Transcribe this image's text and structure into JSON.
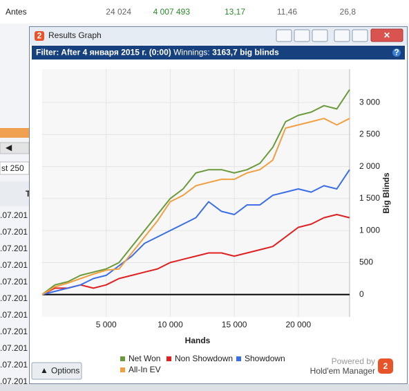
{
  "background": {
    "top_row": [
      "Antes",
      "24 024",
      "4 007 493",
      "13,17",
      "11,46",
      "26,8"
    ],
    "filter_box": "st 250",
    "column_head": "T",
    "dates": [
      ".07.201",
      ".07.201",
      ".07.201",
      ".07.201",
      ".07.201",
      ".07.201",
      ".07.201",
      ".07.201",
      ".07.201",
      ".07.201",
      ".07.201"
    ]
  },
  "window": {
    "title": "Results Graph",
    "filter_label": "Filter:",
    "filter_value": "After 4 января 2015 г. (0:00)",
    "winnings_label": "Winnings:",
    "winnings_value": "3163,7 big blinds",
    "options_button": "Options",
    "powered_by": "Powered by",
    "brand": "Hold'em Manager"
  },
  "chart_data": {
    "type": "line",
    "x_label": "Hands",
    "y_label": "Big Blinds",
    "x": [
      0,
      1000,
      2000,
      3000,
      4000,
      5000,
      6000,
      7000,
      8000,
      9000,
      10000,
      11000,
      12000,
      13000,
      14000,
      15000,
      16000,
      17000,
      18000,
      19000,
      20000,
      21000,
      22000,
      23000,
      24000
    ],
    "series": [
      {
        "name": "Net Won",
        "color": "#6a9a3a",
        "values": [
          0,
          150,
          200,
          300,
          350,
          400,
          500,
          750,
          1000,
          1250,
          1500,
          1650,
          1900,
          1950,
          1950,
          1900,
          1950,
          2050,
          2300,
          2700,
          2800,
          2850,
          2950,
          2900,
          3200
        ]
      },
      {
        "name": "Non Showdown",
        "color": "#e02020",
        "values": [
          0,
          100,
          100,
          150,
          100,
          150,
          250,
          300,
          350,
          400,
          500,
          550,
          600,
          650,
          650,
          600,
          650,
          700,
          750,
          900,
          1050,
          1100,
          1200,
          1250,
          1200
        ]
      },
      {
        "name": "Showdown",
        "color": "#3a6ee8",
        "values": [
          0,
          50,
          100,
          150,
          250,
          300,
          450,
          600,
          800,
          900,
          1000,
          1100,
          1200,
          1450,
          1300,
          1250,
          1400,
          1400,
          1550,
          1600,
          1650,
          1600,
          1700,
          1650,
          1950
        ]
      },
      {
        "name": "All-In EV",
        "color": "#f0a040",
        "values": [
          0,
          120,
          180,
          250,
          320,
          380,
          400,
          650,
          900,
          1150,
          1450,
          1550,
          1700,
          1750,
          1800,
          1800,
          1900,
          1950,
          2100,
          2600,
          2650,
          2700,
          2750,
          2650,
          2750
        ]
      }
    ],
    "xlim": [
      0,
      24000
    ],
    "ylim": [
      -350,
      3520
    ],
    "xticks": [
      {
        "value": 5000,
        "label": "5 000"
      },
      {
        "value": 10000,
        "label": "10 000"
      },
      {
        "value": 15000,
        "label": "15 000"
      },
      {
        "value": 20000,
        "label": "20 000"
      }
    ],
    "yticks": [
      0,
      500,
      {
        "value": 1000,
        "label": "1 000"
      },
      {
        "value": 1500,
        "label": "1 500"
      },
      {
        "value": 2000,
        "label": "2 000"
      },
      {
        "value": 2500,
        "label": "2 500"
      },
      {
        "value": 3000,
        "label": "3 000"
      }
    ],
    "grid": true,
    "zero_line": true
  }
}
